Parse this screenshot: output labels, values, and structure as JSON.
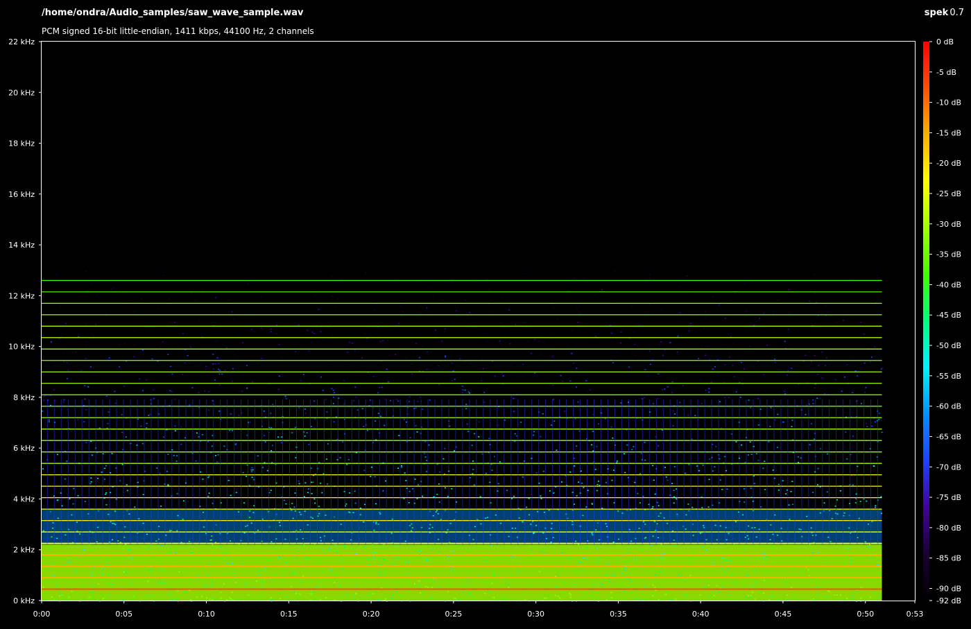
{
  "app": {
    "name": "spek",
    "version": "0.7"
  },
  "file": {
    "path": "/home/ondra/Audio_samples/saw_wave_sample.wav",
    "info": "PCM signed 16-bit little-endian, 1411 kbps, 44100 Hz, 2 channels"
  },
  "chart_data": {
    "type": "heatmap",
    "title": "/home/ondra/Audio_samples/saw_wave_sample.wav",
    "subtitle": "PCM signed 16-bit little-endian, 1411 kbps, 44100 Hz, 2 channels",
    "x_axis": {
      "min_seconds": 0,
      "max_seconds": 53,
      "tick_labels": [
        "0:00",
        "0:05",
        "0:10",
        "0:15",
        "0:20",
        "0:25",
        "0:30",
        "0:35",
        "0:40",
        "0:45",
        "0:50",
        "0:53"
      ],
      "tick_seconds": [
        0,
        5,
        10,
        15,
        20,
        25,
        30,
        35,
        40,
        45,
        50,
        53
      ]
    },
    "y_axis": {
      "min_khz": 0,
      "max_khz": 22,
      "tick_labels": [
        "0 kHz",
        "2 kHz",
        "4 kHz",
        "6 kHz",
        "8 kHz",
        "10 kHz",
        "12 kHz",
        "14 kHz",
        "16 kHz",
        "18 kHz",
        "20 kHz",
        "22 kHz"
      ],
      "tick_khz": [
        0,
        2,
        4,
        6,
        8,
        10,
        12,
        14,
        16,
        18,
        20,
        22
      ]
    },
    "color_scale": {
      "min_db": -92,
      "max_db": 0,
      "tick_labels": [
        "0 dB",
        "-5 dB",
        "-10 dB",
        "-15 dB",
        "-20 dB",
        "-25 dB",
        "-30 dB",
        "-35 dB",
        "-40 dB",
        "-45 dB",
        "-50 dB",
        "-55 dB",
        "-60 dB",
        "-65 dB",
        "-70 dB",
        "-75 dB",
        "-80 dB",
        "-85 dB",
        "-90 dB",
        "-92 dB"
      ],
      "tick_db": [
        0,
        -5,
        -10,
        -15,
        -20,
        -25,
        -30,
        -35,
        -40,
        -45,
        -50,
        -55,
        -60,
        -65,
        -70,
        -75,
        -80,
        -85,
        -90,
        -92
      ],
      "colors": [
        "#000000",
        "#1a0033",
        "#4000a0",
        "#2040ff",
        "#0090ff",
        "#00f0ff",
        "#00ff80",
        "#40ff00",
        "#a0ff00",
        "#ffff00",
        "#ffb000",
        "#ff5000",
        "#ff0000"
      ]
    },
    "signal_end_seconds": 51,
    "harmonics": {
      "fundamental_khz": 0.45,
      "visible_up_to_khz": 13,
      "strong_band_khz": [
        0,
        2.2
      ],
      "dense_band_khz": [
        2.2,
        3.6
      ]
    }
  }
}
